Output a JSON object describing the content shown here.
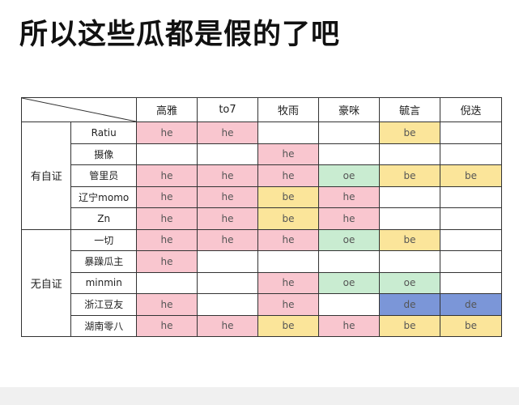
{
  "title": "所以这些瓜都是假的了吧",
  "colors": {
    "he": "#f9c6cf",
    "be": "#fbe59a",
    "oe": "#c9ecd1",
    "de": "#7b96d8"
  },
  "columns": [
    "高雅",
    "to7",
    "牧雨",
    "豪咪",
    "毓言",
    "倪迭"
  ],
  "groups": [
    {
      "label": "有自证",
      "rows": [
        {
          "name": "Ratiu",
          "cells": [
            "he",
            "he",
            "",
            "",
            "be",
            ""
          ]
        },
        {
          "name": "摄像",
          "cells": [
            "",
            "",
            "he",
            "",
            "",
            ""
          ]
        },
        {
          "name": "管里员",
          "cells": [
            "he",
            "he",
            "he",
            "oe",
            "be",
            "be"
          ]
        },
        {
          "name": "辽宁momo",
          "cells": [
            "he",
            "he",
            "be",
            "he",
            "",
            ""
          ]
        },
        {
          "name": "Zn",
          "cells": [
            "he",
            "he",
            "be",
            "he",
            "",
            ""
          ]
        }
      ]
    },
    {
      "label": "无自证",
      "rows": [
        {
          "name": "一切",
          "cells": [
            "he",
            "he",
            "he",
            "oe",
            "be",
            ""
          ]
        },
        {
          "name": "暴躁瓜主",
          "cells": [
            "he",
            "",
            "",
            "",
            "",
            ""
          ]
        },
        {
          "name": "minmin",
          "cells": [
            "",
            "",
            "he",
            "oe",
            "oe",
            ""
          ]
        },
        {
          "name": "浙江豆友",
          "cells": [
            "he",
            "",
            "he",
            "",
            "de",
            "de"
          ]
        },
        {
          "name": "湖南零八",
          "cells": [
            "he",
            "he",
            "be",
            "he",
            "be",
            "be"
          ]
        }
      ]
    }
  ]
}
